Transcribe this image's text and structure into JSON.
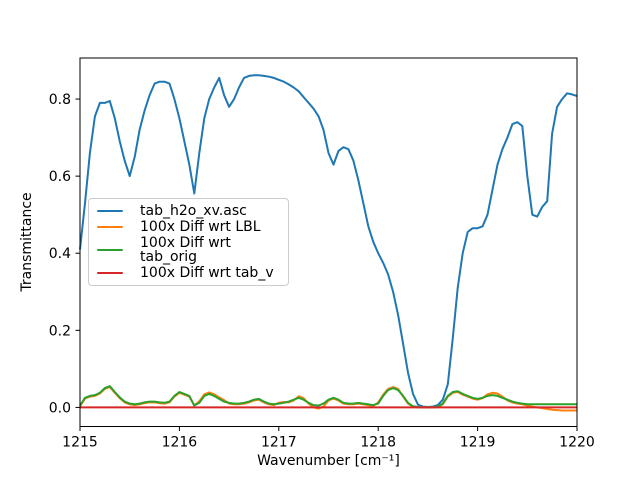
{
  "figure": {
    "background": "#ffffff",
    "spine_color": "#000000",
    "legend_border_color": "#cccccc"
  },
  "chart_data": {
    "type": "line",
    "title": "",
    "xlabel": "Wavenumber [cm⁻¹]",
    "ylabel": "Transmittance",
    "xlim": [
      1215,
      1220
    ],
    "ylim": [
      -0.0495,
      0.9065
    ],
    "x_ticks": [
      "1215",
      "1216",
      "1217",
      "1218",
      "1219",
      "1220"
    ],
    "x_tick_values": [
      1215,
      1216,
      1217,
      1218,
      1219,
      1220
    ],
    "y_ticks": [
      "0.0",
      "0.2",
      "0.4",
      "0.6",
      "0.8"
    ],
    "y_tick_values": [
      0.0,
      0.2,
      0.4,
      0.6,
      0.8
    ],
    "grid": false,
    "legend_position": "center-left",
    "x_start": 1215,
    "x_step": 0.05,
    "series": [
      {
        "name": "tab_h2o_xv.asc",
        "color": "#1f77b4",
        "values": [
          0.41,
          0.53,
          0.66,
          0.755,
          0.79,
          0.79,
          0.795,
          0.75,
          0.69,
          0.64,
          0.6,
          0.65,
          0.72,
          0.77,
          0.81,
          0.84,
          0.845,
          0.845,
          0.84,
          0.8,
          0.75,
          0.69,
          0.63,
          0.555,
          0.66,
          0.75,
          0.8,
          0.83,
          0.855,
          0.81,
          0.78,
          0.8,
          0.83,
          0.855,
          0.86,
          0.862,
          0.862,
          0.86,
          0.858,
          0.855,
          0.85,
          0.845,
          0.838,
          0.83,
          0.82,
          0.805,
          0.79,
          0.775,
          0.755,
          0.72,
          0.66,
          0.63,
          0.665,
          0.675,
          0.67,
          0.64,
          0.59,
          0.53,
          0.47,
          0.43,
          0.4,
          0.375,
          0.345,
          0.3,
          0.24,
          0.165,
          0.09,
          0.035,
          0.007,
          0.002,
          0.001,
          0.002,
          0.006,
          0.02,
          0.06,
          0.18,
          0.31,
          0.4,
          0.455,
          0.465,
          0.465,
          0.47,
          0.5,
          0.565,
          0.63,
          0.67,
          0.7,
          0.735,
          0.74,
          0.73,
          0.6,
          0.5,
          0.495,
          0.52,
          0.535,
          0.71,
          0.78,
          0.8,
          0.815,
          0.812,
          0.808
        ]
      },
      {
        "name": "100x Diff wrt LBL",
        "color": "#ff7f0e",
        "values": [
          0.003,
          0.023,
          0.028,
          0.03,
          0.036,
          0.048,
          0.053,
          0.038,
          0.024,
          0.013,
          0.008,
          0.006,
          0.008,
          0.011,
          0.013,
          0.013,
          0.011,
          0.01,
          0.013,
          0.028,
          0.038,
          0.033,
          0.028,
          0.005,
          0.016,
          0.034,
          0.039,
          0.034,
          0.026,
          0.019,
          0.01,
          0.008,
          0.008,
          0.01,
          0.013,
          0.018,
          0.02,
          0.013,
          0.008,
          0.006,
          0.012,
          0.014,
          0.013,
          0.018,
          0.029,
          0.024,
          0.01,
          0.0,
          -0.003,
          0.002,
          0.018,
          0.023,
          0.018,
          0.01,
          0.008,
          0.008,
          0.01,
          0.008,
          0.006,
          0.004,
          0.013,
          0.033,
          0.048,
          0.053,
          0.048,
          0.028,
          0.01,
          0.002,
          0.0,
          0.0,
          0.0,
          0.0,
          0.001,
          0.008,
          0.028,
          0.038,
          0.04,
          0.033,
          0.028,
          0.023,
          0.02,
          0.024,
          0.034,
          0.038,
          0.036,
          0.028,
          0.018,
          0.013,
          0.01,
          0.008,
          0.005,
          0.002,
          0.0,
          -0.002,
          -0.004,
          -0.006,
          -0.007,
          -0.008,
          -0.008,
          -0.008,
          -0.008
        ]
      },
      {
        "name": "100x Diff wrt tab_orig",
        "color": "#2ca02c",
        "values": [
          0.005,
          0.025,
          0.03,
          0.032,
          0.038,
          0.05,
          0.055,
          0.04,
          0.026,
          0.015,
          0.01,
          0.008,
          0.01,
          0.013,
          0.015,
          0.015,
          0.013,
          0.012,
          0.015,
          0.03,
          0.04,
          0.035,
          0.03,
          0.005,
          0.012,
          0.03,
          0.035,
          0.03,
          0.022,
          0.015,
          0.012,
          0.01,
          0.01,
          0.012,
          0.015,
          0.02,
          0.022,
          0.015,
          0.01,
          0.008,
          0.01,
          0.012,
          0.015,
          0.02,
          0.025,
          0.02,
          0.012,
          0.006,
          0.005,
          0.01,
          0.02,
          0.025,
          0.02,
          0.012,
          0.01,
          0.01,
          0.012,
          0.01,
          0.008,
          0.006,
          0.01,
          0.03,
          0.045,
          0.05,
          0.045,
          0.03,
          0.012,
          0.003,
          0.001,
          0.0,
          0.0,
          0.0,
          0.002,
          0.01,
          0.03,
          0.04,
          0.042,
          0.035,
          0.03,
          0.025,
          0.022,
          0.025,
          0.03,
          0.032,
          0.03,
          0.025,
          0.02,
          0.015,
          0.012,
          0.01,
          0.008,
          0.008,
          0.008,
          0.008,
          0.008,
          0.008,
          0.008,
          0.008,
          0.008,
          0.008,
          0.008
        ]
      },
      {
        "name": "100x Diff wrt tab_v",
        "color": "#d62728",
        "values": [
          0,
          0,
          0,
          0,
          0,
          0,
          0,
          0,
          0,
          0,
          0,
          0,
          0,
          0,
          0,
          0,
          0,
          0,
          0,
          0,
          0,
          0,
          0,
          0,
          0,
          0,
          0,
          0,
          0,
          0,
          0,
          0,
          0,
          0,
          0,
          0,
          0,
          0,
          0,
          0,
          0,
          0,
          0,
          0,
          0,
          0,
          0,
          0,
          0,
          0,
          0,
          0,
          0,
          0,
          0,
          0,
          0,
          0,
          0,
          0,
          0,
          0,
          0,
          0,
          0,
          0,
          0,
          0,
          0,
          0,
          0,
          0,
          0,
          0,
          0,
          0,
          0,
          0,
          0,
          0,
          0,
          0,
          0,
          0,
          0,
          0,
          0,
          0,
          0,
          0,
          0,
          0,
          0,
          0,
          0,
          0,
          0,
          0,
          0,
          0,
          0
        ]
      }
    ]
  }
}
